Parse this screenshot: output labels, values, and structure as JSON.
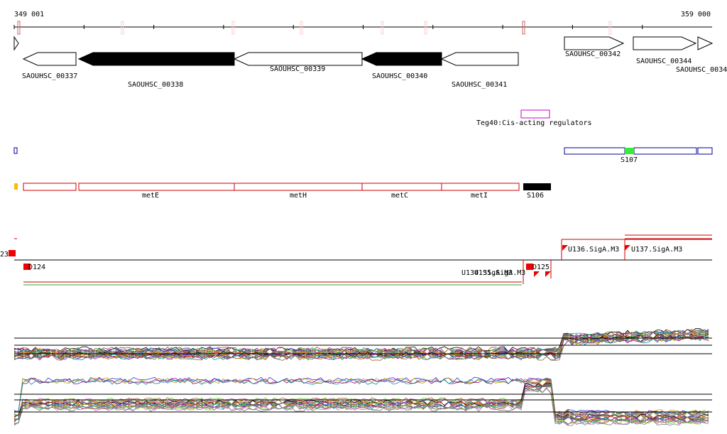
{
  "ruler": {
    "start": "349 001",
    "end": "359 000"
  },
  "genes": [
    "SAOUHSC_00337",
    "SAOUHSC_00338",
    "SAOUHSC_00339",
    "SAOUHSC_00340",
    "SAOUHSC_00341",
    "SAOUHSC_00342",
    "SAOUHSC_00344",
    "SAOUHSC_0034"
  ],
  "regulator": "Teg40:Cis-acting regulators",
  "features": [
    "S107",
    "metE",
    "metH",
    "metC",
    "metI",
    "S106"
  ],
  "promoters": [
    "23",
    "D124",
    "D125",
    "U134.SigA.M3",
    "U135.SigA.M3",
    "U136.SigA.M3",
    "U137.SigA.M3"
  ]
}
